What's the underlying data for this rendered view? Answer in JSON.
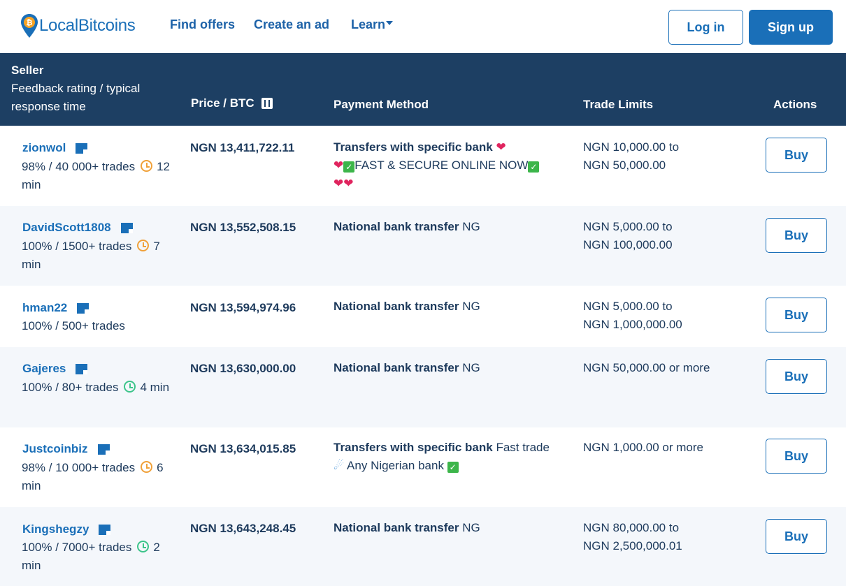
{
  "nav": {
    "logo_text": "LocalBitcoins",
    "links": {
      "find": "Find offers",
      "create": "Create an ad",
      "learn": "Learn"
    },
    "login": "Log in",
    "signup": "Sign up"
  },
  "table": {
    "headers": {
      "seller": "Seller",
      "seller_sub": "Feedback rating / typical response time",
      "price": "Price / BTC",
      "payment": "Payment Method",
      "limits": "Trade Limits",
      "actions": "Actions"
    },
    "buy_label": "Buy",
    "rows": [
      {
        "seller": "zionwol",
        "stats": "98% / 40 000+ trades",
        "time": "12 min",
        "clock": "orange",
        "price": "NGN 13,411,722.11",
        "method": "Transfers with specific bank",
        "method_note": "FAST & SECURE ONLINE NOW",
        "limit_a": "NGN 10,000.00 to",
        "limit_b": "NGN 50,000.00"
      },
      {
        "seller": "DavidScott1808",
        "stats": "100% / 1500+ trades",
        "time": "7 min",
        "clock": "orange",
        "price": "NGN 13,552,508.15",
        "method": "National bank transfer",
        "method_note": "NG",
        "limit_a": "NGN 5,000.00 to",
        "limit_b": "NGN 100,000.00"
      },
      {
        "seller": "hman22",
        "stats": "100% / 500+ trades",
        "time": "",
        "clock": "",
        "price": "NGN 13,594,974.96",
        "method": "National bank transfer",
        "method_note": "NG",
        "limit_a": "NGN 5,000.00 to",
        "limit_b": "NGN 1,000,000.00"
      },
      {
        "seller": "Gajeres",
        "stats": "100% / 80+ trades",
        "time": "4 min",
        "clock": "green",
        "price": "NGN 13,630,000.00",
        "method": "National bank transfer",
        "method_note": "NG",
        "limit_a": "NGN 50,000.00 or more",
        "limit_b": ""
      },
      {
        "seller": "Justcoinbiz",
        "stats": "98% / 10 000+ trades",
        "time": "6 min",
        "clock": "orange",
        "price": "NGN 13,634,015.85",
        "method": "Transfers with specific bank",
        "method_note": "Fast trade",
        "method_note2": "Any Nigerian bank",
        "limit_a": "NGN 1,000.00 or more",
        "limit_b": ""
      },
      {
        "seller": "Kingshegzy",
        "stats": "100% / 7000+ trades",
        "time": "2 min",
        "clock": "green",
        "price": "NGN 13,643,248.45",
        "method": "National bank transfer",
        "method_note": "NG",
        "limit_a": "NGN 80,000.00 to",
        "limit_b": "NGN 2,500,000.01"
      }
    ]
  }
}
